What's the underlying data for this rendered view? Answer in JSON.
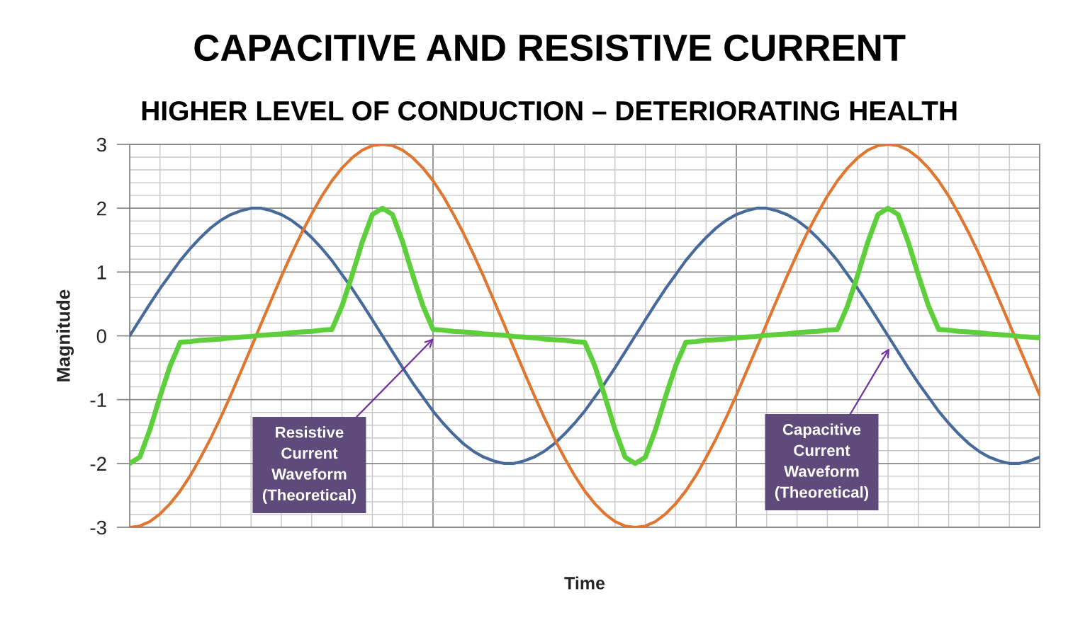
{
  "chart_data": {
    "type": "line",
    "title": "CAPACITIVE AND RESISTIVE CURRENT",
    "subtitle": "HIGHER LEVEL OF CONDUCTION – DETERIORATING HEALTH",
    "xlabel": "Time",
    "ylabel": "Magnitude",
    "categories": [
      null,
      null,
      null,
      null,
      null,
      null,
      null,
      null,
      null,
      null,
      null,
      null,
      null,
      null,
      null,
      null,
      null,
      null,
      null,
      null,
      null,
      null,
      null,
      null,
      null,
      null,
      null,
      null,
      null,
      null,
      null,
      null,
      null,
      null,
      null,
      null,
      null,
      null,
      null,
      null,
      null,
      null,
      null,
      null,
      null,
      null,
      null,
      null,
      null,
      null,
      null,
      null,
      null,
      null,
      null,
      null,
      null,
      null,
      null,
      null,
      null,
      null,
      null,
      null,
      null,
      null,
      null,
      null,
      null,
      null,
      null,
      null,
      null,
      null,
      null,
      null,
      null,
      null,
      null,
      null,
      null,
      null,
      null,
      null,
      null,
      null,
      null,
      null,
      null,
      null,
      null
    ],
    "series": [
      {
        "color": "#476a9b",
        "values": [
          0,
          0.25,
          0.5,
          0.74,
          0.96,
          1.18,
          1.37,
          1.54,
          1.69,
          1.81,
          1.9,
          1.96,
          2,
          2,
          1.96,
          1.9,
          1.81,
          1.69,
          1.54,
          1.37,
          1.18,
          0.96,
          0.74,
          0.5,
          0.25,
          0,
          -0.25,
          -0.5,
          -0.74,
          -0.96,
          -1.18,
          -1.37,
          -1.54,
          -1.69,
          -1.81,
          -1.9,
          -1.96,
          -2,
          -2,
          -1.96,
          -1.9,
          -1.81,
          -1.69,
          -1.54,
          -1.37,
          -1.18,
          -0.96,
          -0.74,
          -0.5,
          -0.25,
          0,
          0.25,
          0.5,
          0.74,
          0.96,
          1.18,
          1.37,
          1.54,
          1.69,
          1.81,
          1.9,
          1.96,
          2,
          2,
          1.96,
          1.9,
          1.81,
          1.69,
          1.54,
          1.37,
          1.18,
          0.96,
          0.74,
          0.5,
          0.25,
          0,
          -0.25,
          -0.5,
          -0.74,
          -0.96,
          -1.18,
          -1.37,
          -1.54,
          -1.69,
          -1.81,
          -1.9,
          -1.96,
          -2,
          -2,
          -1.96,
          -1.9
        ]
      },
      {
        "color": "#e07630",
        "values": [
          -3,
          -2.98,
          -2.91,
          -2.79,
          -2.63,
          -2.43,
          -2.19,
          -1.91,
          -1.61,
          -1.28,
          -0.93,
          -0.56,
          -0.19,
          0.19,
          0.56,
          0.93,
          1.28,
          1.61,
          1.91,
          2.19,
          2.43,
          2.63,
          2.79,
          2.91,
          2.98,
          3,
          2.98,
          2.91,
          2.79,
          2.63,
          2.43,
          2.19,
          1.91,
          1.61,
          1.28,
          0.93,
          0.56,
          0.19,
          -0.19,
          -0.56,
          -0.93,
          -1.28,
          -1.61,
          -1.91,
          -2.19,
          -2.43,
          -2.63,
          -2.79,
          -2.91,
          -2.98,
          -3,
          -2.98,
          -2.91,
          -2.79,
          -2.63,
          -2.43,
          -2.19,
          -1.91,
          -1.61,
          -1.28,
          -0.93,
          -0.56,
          -0.19,
          0.19,
          0.56,
          0.93,
          1.28,
          1.61,
          1.91,
          2.19,
          2.43,
          2.63,
          2.79,
          2.91,
          2.98,
          3,
          2.98,
          2.91,
          2.79,
          2.63,
          2.43,
          2.19,
          1.91,
          1.61,
          1.28,
          0.93,
          0.56,
          0.19,
          -0.19,
          -0.56,
          -0.93
        ]
      },
      {
        "color": "#5ccf3a",
        "values": [
          -2,
          -1.9,
          -1.47,
          -0.95,
          -0.47,
          -0.1,
          -0.09,
          -0.07,
          -0.06,
          -0.05,
          -0.03,
          -0.02,
          -0.01,
          0.01,
          0.02,
          0.03,
          0.05,
          0.06,
          0.07,
          0.09,
          0.1,
          0.47,
          0.95,
          1.47,
          1.9,
          2,
          1.9,
          1.47,
          0.95,
          0.47,
          0.1,
          0.09,
          0.07,
          0.06,
          0.05,
          0.03,
          0.02,
          0.01,
          -0.01,
          -0.02,
          -0.03,
          -0.05,
          -0.06,
          -0.07,
          -0.09,
          -0.1,
          -0.47,
          -0.95,
          -1.47,
          -1.9,
          -2,
          -1.9,
          -1.47,
          -0.95,
          -0.47,
          -0.1,
          -0.09,
          -0.07,
          -0.06,
          -0.05,
          -0.03,
          -0.02,
          -0.01,
          0.01,
          0.02,
          0.03,
          0.05,
          0.06,
          0.07,
          0.09,
          0.1,
          0.47,
          0.95,
          1.47,
          1.9,
          2,
          1.9,
          1.47,
          0.95,
          0.47,
          0.1,
          0.09,
          0.07,
          0.06,
          0.05,
          0.03,
          0.02,
          0.01,
          -0.01,
          -0.02,
          -0.03
        ]
      }
    ],
    "ylim": [
      -3,
      3
    ],
    "yticks": [
      -3,
      -2,
      -1,
      0,
      1,
      2,
      3
    ],
    "grid": true,
    "tick_labels": "y",
    "annotations": [
      "Resistive\nCurrent\nWaveform\n(Theoretical)",
      "Capacitive\nCurrent\nWaveform\n(Theoretical)"
    ]
  }
}
